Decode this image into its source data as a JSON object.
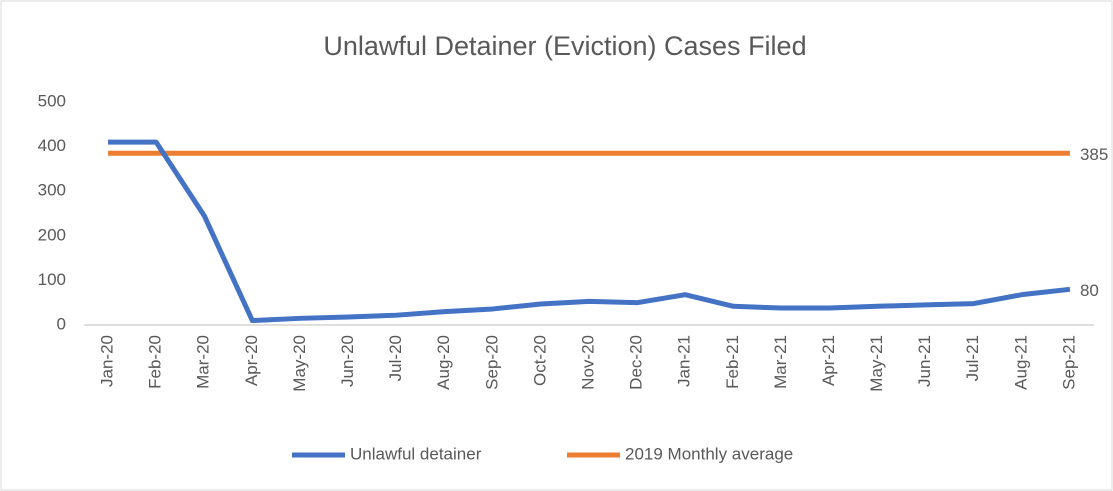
{
  "chart_data": {
    "type": "line",
    "title": "Unlawful Detainer (Eviction) Cases Filed",
    "categories": [
      "Jan-20",
      "Feb-20",
      "Mar-20",
      "Apr-20",
      "May-20",
      "Jun-20",
      "Jul-20",
      "Aug-20",
      "Sep-20",
      "Oct-20",
      "Nov-20",
      "Dec-20",
      "Jan-21",
      "Feb-21",
      "Mar-21",
      "Apr-21",
      "May-21",
      "Jun-21",
      "Jul-21",
      "Aug-21",
      "Sep-21"
    ],
    "series": [
      {
        "name": "Unlawful detainer",
        "color": "#4472c4",
        "values": [
          410,
          410,
          245,
          10,
          15,
          18,
          22,
          30,
          36,
          47,
          53,
          50,
          68,
          42,
          38,
          38,
          42,
          45,
          48,
          68,
          80
        ]
      },
      {
        "name": "2019 Monthly average",
        "color": "#ed7d31",
        "values": [
          385,
          385,
          385,
          385,
          385,
          385,
          385,
          385,
          385,
          385,
          385,
          385,
          385,
          385,
          385,
          385,
          385,
          385,
          385,
          385,
          385
        ]
      }
    ],
    "ylim": [
      0,
      500
    ],
    "yticks": [
      0,
      100,
      200,
      300,
      400,
      500
    ],
    "grid": false,
    "legend": "bottom"
  }
}
